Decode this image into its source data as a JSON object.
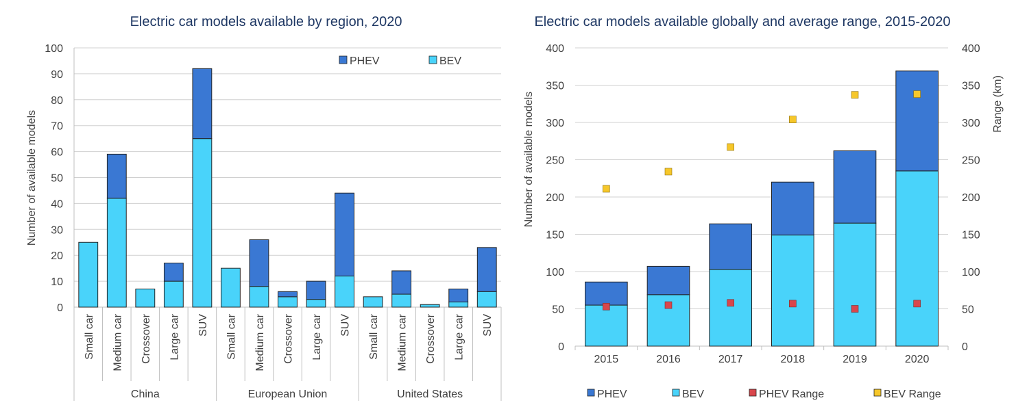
{
  "colors": {
    "phev": "#3A78D3",
    "bev": "#49D3FA",
    "phev_range": "#D9464C",
    "bev_range": "#F6C72A",
    "title": "#1F3864",
    "axis_text": "#404040",
    "grid": "#D0D0D0"
  },
  "chart_data": [
    {
      "type": "bar",
      "stacked": true,
      "title": "Electric car models available by region, 2020",
      "ylabel": "Number of available models",
      "ylim": [
        0,
        100
      ],
      "yticks": [
        "0",
        "10",
        "20",
        "30",
        "40",
        "50",
        "60",
        "70",
        "80",
        "90",
        "100"
      ],
      "legend_position": "top-right",
      "legend": [
        "PHEV",
        "BEV"
      ],
      "groups": [
        {
          "name": "China",
          "categories": [
            "Small car",
            "Medium car",
            "Crossover",
            "Large car",
            "SUV"
          ]
        },
        {
          "name": "European Union",
          "categories": [
            "Small car",
            "Medium car",
            "Crossover",
            "Large car",
            "SUV"
          ]
        },
        {
          "name": "United States",
          "categories": [
            "Small car",
            "Medium car",
            "Crossover",
            "Large car",
            "SUV"
          ]
        }
      ],
      "series": [
        {
          "name": "BEV",
          "values": [
            25,
            42,
            7,
            10,
            65,
            15,
            8,
            4,
            3,
            12,
            4,
            5,
            1,
            2,
            6
          ]
        },
        {
          "name": "PHEV",
          "values": [
            0,
            17,
            0,
            7,
            27,
            0,
            18,
            2,
            7,
            32,
            0,
            9,
            0,
            5,
            17
          ]
        }
      ]
    },
    {
      "type": "bar",
      "stacked": true,
      "title": "Electric car models available globally and average range, 2015-2020",
      "ylabel": "Number of available models",
      "y2label": "Range (km)",
      "ylim": [
        0,
        400
      ],
      "y2lim": [
        0,
        400
      ],
      "yticks": [
        "0",
        "50",
        "100",
        "150",
        "200",
        "250",
        "300",
        "350",
        "400"
      ],
      "categories": [
        "2015",
        "2016",
        "2017",
        "2018",
        "2019",
        "2020"
      ],
      "legend_position": "bottom",
      "legend": [
        "PHEV",
        "BEV",
        "PHEV Range",
        "BEV Range"
      ],
      "series": [
        {
          "name": "BEV",
          "type": "bar",
          "values": [
            55,
            69,
            103,
            149,
            165,
            235
          ]
        },
        {
          "name": "PHEV",
          "type": "bar",
          "values": [
            31,
            38,
            61,
            71,
            97,
            134
          ]
        },
        {
          "name": "PHEV Range",
          "type": "scatter",
          "axis": "y2",
          "values": [
            53,
            55,
            58,
            57,
            50,
            57
          ]
        },
        {
          "name": "BEV Range",
          "type": "scatter",
          "axis": "y2",
          "values": [
            211,
            234,
            267,
            304,
            337,
            338
          ]
        }
      ]
    }
  ]
}
